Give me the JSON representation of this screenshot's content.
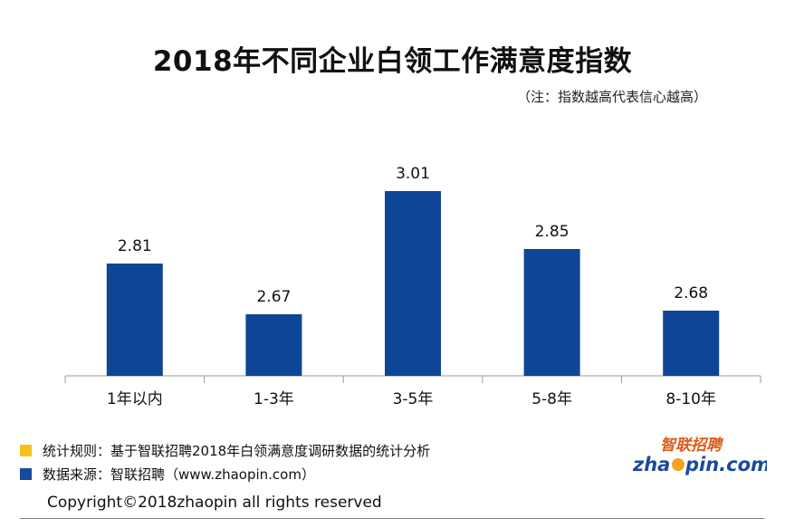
{
  "title": "2018年不同企业白领工作满意度指数",
  "subtitle": "（注：指数越高代表信心越高）",
  "chart_data": {
    "type": "bar",
    "title": "2018年不同企业白领工作满意度指数",
    "categories": [
      "1年以内",
      "1-3年",
      "3-5年",
      "5-8年",
      "8-10年"
    ],
    "values": [
      2.81,
      2.67,
      3.01,
      2.85,
      2.68
    ],
    "value_labels": [
      "2.81",
      "2.67",
      "3.01",
      "2.85",
      "2.68"
    ],
    "xlabel": "",
    "ylabel": "",
    "ylim": [
      2.5,
      3.1
    ],
    "grid": false,
    "bar_color": "#0e4596"
  },
  "notes": [
    {
      "text": "统计规则：基于智联招聘2018年白领满意度调研数据的统计分析",
      "color": "#f5c21a"
    },
    {
      "text": "数据来源：智联招聘（www.zhaopin.com）",
      "color": "#1a4a9c"
    }
  ],
  "logo": {
    "cn": "智联招聘",
    "en_prefix": "zha",
    "en_suffix": "pin.com"
  },
  "copyright": "Copyright©2018zhaopin all rights reserved"
}
